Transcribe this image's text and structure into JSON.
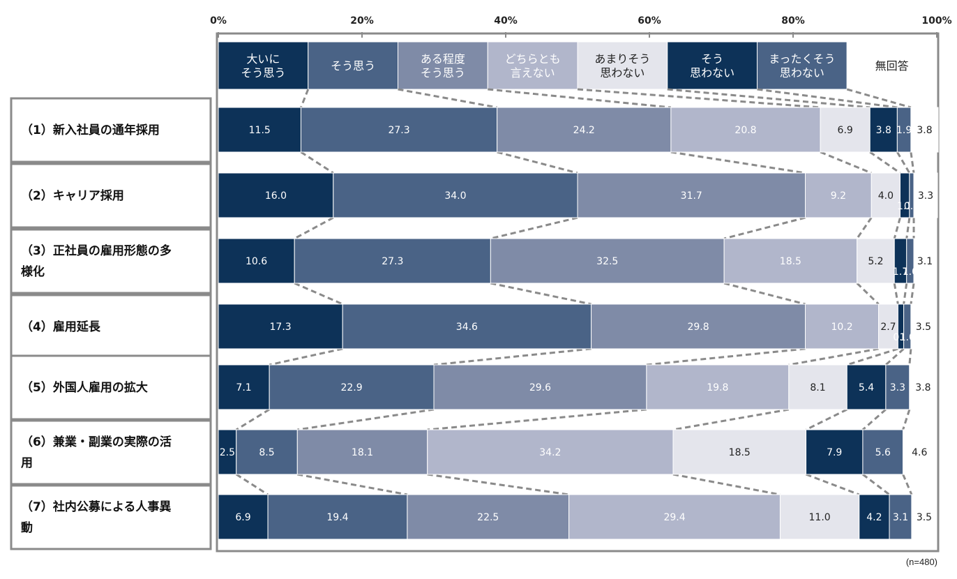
{
  "note": "(n=480)",
  "colors": {
    "c0": "#0d3258",
    "c1": "#4a6386",
    "c2": "#7f8ba7",
    "c3": "#b1b6cb",
    "c4": "#e4e5ec",
    "c5": "#0d3258",
    "c6": "#4a6386",
    "c7": "#ffffff",
    "connector": "#8a8a8a",
    "frame": "#8a8a8a"
  },
  "chart_data": {
    "type": "bar",
    "orientation": "horizontal",
    "stacked": true,
    "xlim": [
      0,
      100
    ],
    "x_ticks": [
      "0%",
      "20%",
      "40%",
      "60%",
      "80%",
      "100%"
    ],
    "legend_position": "top",
    "series": [
      {
        "name": "大いに\nそう思う",
        "values": [
          11.5,
          16.0,
          10.6,
          17.3,
          7.1,
          2.5,
          6.9
        ]
      },
      {
        "name": "そう思う",
        "values": [
          27.3,
          34.0,
          27.3,
          34.6,
          22.9,
          8.5,
          19.4
        ]
      },
      {
        "name": "ある程度\nそう思う",
        "values": [
          24.2,
          31.7,
          32.5,
          29.8,
          29.6,
          18.1,
          22.5
        ]
      },
      {
        "name": "どちらとも\n言えない",
        "values": [
          20.8,
          9.2,
          18.5,
          10.2,
          19.8,
          34.2,
          29.4
        ]
      },
      {
        "name": "あまりそう\n思わない",
        "values": [
          6.9,
          4.0,
          5.2,
          2.7,
          8.1,
          18.5,
          11.0
        ]
      },
      {
        "name": "そう\n思わない",
        "values": [
          3.8,
          1.3,
          1.7,
          0.8,
          5.4,
          7.9,
          4.2
        ]
      },
      {
        "name": "まったくそう\n思わない",
        "values": [
          1.9,
          0.6,
          1.0,
          1.0,
          3.3,
          5.6,
          3.1
        ]
      },
      {
        "name": "無回答",
        "values": [
          3.8,
          3.3,
          3.1,
          3.5,
          3.8,
          4.6,
          3.5
        ]
      }
    ],
    "categories": [
      "（1）新入社員の通年採用",
      "（2）キャリア採用",
      "（3）正社員の雇用形態の多様化",
      "（4）雇用延長",
      "（5）外国人雇用の拡大",
      "（6）兼業・副業の実際の活用",
      "（7）社内公募による人事異動"
    ],
    "category_lines": [
      [
        "（1）新入社員の通年採用"
      ],
      [
        "（2）キャリア採用"
      ],
      [
        "（3）正社員の雇用形態の多",
        "様化"
      ],
      [
        "（4）雇用延長"
      ],
      [
        "（5）外国人雇用の拡大"
      ],
      [
        "（6）兼業・副業の実際の活",
        "用"
      ],
      [
        "（7）社内公募による人事異",
        "動"
      ]
    ]
  }
}
